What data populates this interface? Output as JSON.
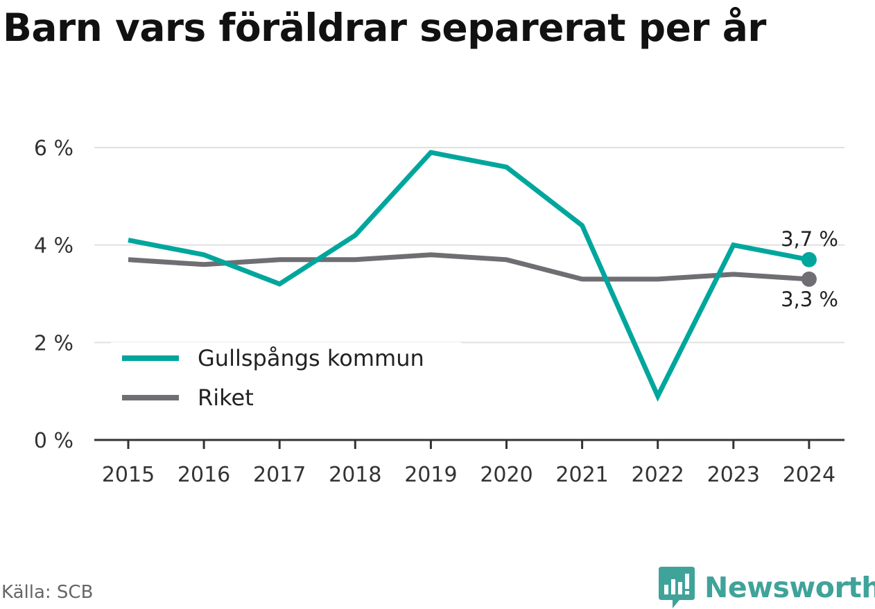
{
  "title": "Barn vars föräldrar separerat per år",
  "source": "Källa: SCB",
  "brand": {
    "name": "Newsworthy",
    "icon": "newsworthy-logo-icon",
    "color": "#3fa39a"
  },
  "chart_data": {
    "type": "line",
    "title": "Barn vars föräldrar separerat per år",
    "x": [
      "2015",
      "2016",
      "2017",
      "2018",
      "2019",
      "2020",
      "2021",
      "2022",
      "2023",
      "2024"
    ],
    "y_ticks": [
      {
        "value": 0,
        "label": "0 %"
      },
      {
        "value": 2,
        "label": "2 %"
      },
      {
        "value": 4,
        "label": "4 %"
      },
      {
        "value": 6,
        "label": "6 %"
      }
    ],
    "ylim": [
      0,
      6
    ],
    "grid": true,
    "legend_position": "bottom-left",
    "series": [
      {
        "name": "Gullspångs kommun",
        "color": "#00a69c",
        "values": [
          4.1,
          3.8,
          3.2,
          4.2,
          5.9,
          5.6,
          4.4,
          0.9,
          4.0,
          3.7
        ],
        "end_label": "3,7 %"
      },
      {
        "name": "Riket",
        "color": "#6e6e73",
        "values": [
          3.7,
          3.6,
          3.7,
          3.7,
          3.8,
          3.7,
          3.3,
          3.3,
          3.4,
          3.3
        ],
        "end_label": "3,3 %"
      }
    ]
  }
}
